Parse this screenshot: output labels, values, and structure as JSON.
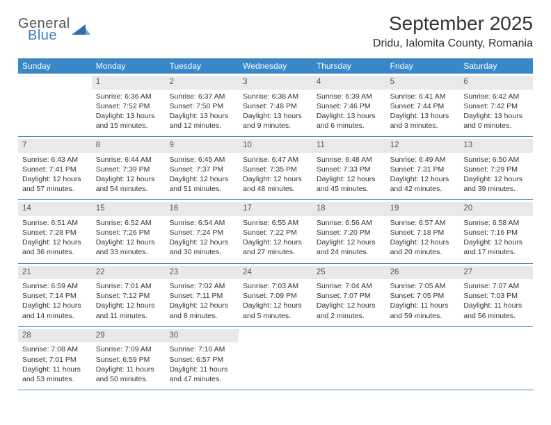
{
  "logo": {
    "general": "General",
    "blue": "Blue"
  },
  "title": "September 2025",
  "location": "Dridu, Ialomita County, Romania",
  "colors": {
    "header_bar": "#3a87c7",
    "daynum_bg": "#e8e9ea",
    "rule": "#3a87c7",
    "logo_blue": "#3a7dbf",
    "text": "#333333",
    "background": "#ffffff"
  },
  "typography": {
    "title_fontsize": 28,
    "location_fontsize": 16,
    "weekday_fontsize": 12,
    "daynum_fontsize": 11.5,
    "body_fontsize": 10.5
  },
  "weekdays": [
    "Sunday",
    "Monday",
    "Tuesday",
    "Wednesday",
    "Thursday",
    "Friday",
    "Saturday"
  ],
  "weeks": [
    [
      {
        "n": "",
        "sunrise": "",
        "sunset": "",
        "daylight": ""
      },
      {
        "n": "1",
        "sunrise": "Sunrise: 6:36 AM",
        "sunset": "Sunset: 7:52 PM",
        "daylight": "Daylight: 13 hours and 15 minutes."
      },
      {
        "n": "2",
        "sunrise": "Sunrise: 6:37 AM",
        "sunset": "Sunset: 7:50 PM",
        "daylight": "Daylight: 13 hours and 12 minutes."
      },
      {
        "n": "3",
        "sunrise": "Sunrise: 6:38 AM",
        "sunset": "Sunset: 7:48 PM",
        "daylight": "Daylight: 13 hours and 9 minutes."
      },
      {
        "n": "4",
        "sunrise": "Sunrise: 6:39 AM",
        "sunset": "Sunset: 7:46 PM",
        "daylight": "Daylight: 13 hours and 6 minutes."
      },
      {
        "n": "5",
        "sunrise": "Sunrise: 6:41 AM",
        "sunset": "Sunset: 7:44 PM",
        "daylight": "Daylight: 13 hours and 3 minutes."
      },
      {
        "n": "6",
        "sunrise": "Sunrise: 6:42 AM",
        "sunset": "Sunset: 7:42 PM",
        "daylight": "Daylight: 13 hours and 0 minutes."
      }
    ],
    [
      {
        "n": "7",
        "sunrise": "Sunrise: 6:43 AM",
        "sunset": "Sunset: 7:41 PM",
        "daylight": "Daylight: 12 hours and 57 minutes."
      },
      {
        "n": "8",
        "sunrise": "Sunrise: 6:44 AM",
        "sunset": "Sunset: 7:39 PM",
        "daylight": "Daylight: 12 hours and 54 minutes."
      },
      {
        "n": "9",
        "sunrise": "Sunrise: 6:45 AM",
        "sunset": "Sunset: 7:37 PM",
        "daylight": "Daylight: 12 hours and 51 minutes."
      },
      {
        "n": "10",
        "sunrise": "Sunrise: 6:47 AM",
        "sunset": "Sunset: 7:35 PM",
        "daylight": "Daylight: 12 hours and 48 minutes."
      },
      {
        "n": "11",
        "sunrise": "Sunrise: 6:48 AM",
        "sunset": "Sunset: 7:33 PM",
        "daylight": "Daylight: 12 hours and 45 minutes."
      },
      {
        "n": "12",
        "sunrise": "Sunrise: 6:49 AM",
        "sunset": "Sunset: 7:31 PM",
        "daylight": "Daylight: 12 hours and 42 minutes."
      },
      {
        "n": "13",
        "sunrise": "Sunrise: 6:50 AM",
        "sunset": "Sunset: 7:29 PM",
        "daylight": "Daylight: 12 hours and 39 minutes."
      }
    ],
    [
      {
        "n": "14",
        "sunrise": "Sunrise: 6:51 AM",
        "sunset": "Sunset: 7:28 PM",
        "daylight": "Daylight: 12 hours and 36 minutes."
      },
      {
        "n": "15",
        "sunrise": "Sunrise: 6:52 AM",
        "sunset": "Sunset: 7:26 PM",
        "daylight": "Daylight: 12 hours and 33 minutes."
      },
      {
        "n": "16",
        "sunrise": "Sunrise: 6:54 AM",
        "sunset": "Sunset: 7:24 PM",
        "daylight": "Daylight: 12 hours and 30 minutes."
      },
      {
        "n": "17",
        "sunrise": "Sunrise: 6:55 AM",
        "sunset": "Sunset: 7:22 PM",
        "daylight": "Daylight: 12 hours and 27 minutes."
      },
      {
        "n": "18",
        "sunrise": "Sunrise: 6:56 AM",
        "sunset": "Sunset: 7:20 PM",
        "daylight": "Daylight: 12 hours and 24 minutes."
      },
      {
        "n": "19",
        "sunrise": "Sunrise: 6:57 AM",
        "sunset": "Sunset: 7:18 PM",
        "daylight": "Daylight: 12 hours and 20 minutes."
      },
      {
        "n": "20",
        "sunrise": "Sunrise: 6:58 AM",
        "sunset": "Sunset: 7:16 PM",
        "daylight": "Daylight: 12 hours and 17 minutes."
      }
    ],
    [
      {
        "n": "21",
        "sunrise": "Sunrise: 6:59 AM",
        "sunset": "Sunset: 7:14 PM",
        "daylight": "Daylight: 12 hours and 14 minutes."
      },
      {
        "n": "22",
        "sunrise": "Sunrise: 7:01 AM",
        "sunset": "Sunset: 7:12 PM",
        "daylight": "Daylight: 12 hours and 11 minutes."
      },
      {
        "n": "23",
        "sunrise": "Sunrise: 7:02 AM",
        "sunset": "Sunset: 7:11 PM",
        "daylight": "Daylight: 12 hours and 8 minutes."
      },
      {
        "n": "24",
        "sunrise": "Sunrise: 7:03 AM",
        "sunset": "Sunset: 7:09 PM",
        "daylight": "Daylight: 12 hours and 5 minutes."
      },
      {
        "n": "25",
        "sunrise": "Sunrise: 7:04 AM",
        "sunset": "Sunset: 7:07 PM",
        "daylight": "Daylight: 12 hours and 2 minutes."
      },
      {
        "n": "26",
        "sunrise": "Sunrise: 7:05 AM",
        "sunset": "Sunset: 7:05 PM",
        "daylight": "Daylight: 11 hours and 59 minutes."
      },
      {
        "n": "27",
        "sunrise": "Sunrise: 7:07 AM",
        "sunset": "Sunset: 7:03 PM",
        "daylight": "Daylight: 11 hours and 56 minutes."
      }
    ],
    [
      {
        "n": "28",
        "sunrise": "Sunrise: 7:08 AM",
        "sunset": "Sunset: 7:01 PM",
        "daylight": "Daylight: 11 hours and 53 minutes."
      },
      {
        "n": "29",
        "sunrise": "Sunrise: 7:09 AM",
        "sunset": "Sunset: 6:59 PM",
        "daylight": "Daylight: 11 hours and 50 minutes."
      },
      {
        "n": "30",
        "sunrise": "Sunrise: 7:10 AM",
        "sunset": "Sunset: 6:57 PM",
        "daylight": "Daylight: 11 hours and 47 minutes."
      },
      {
        "n": "",
        "sunrise": "",
        "sunset": "",
        "daylight": ""
      },
      {
        "n": "",
        "sunrise": "",
        "sunset": "",
        "daylight": ""
      },
      {
        "n": "",
        "sunrise": "",
        "sunset": "",
        "daylight": ""
      },
      {
        "n": "",
        "sunrise": "",
        "sunset": "",
        "daylight": ""
      }
    ]
  ]
}
